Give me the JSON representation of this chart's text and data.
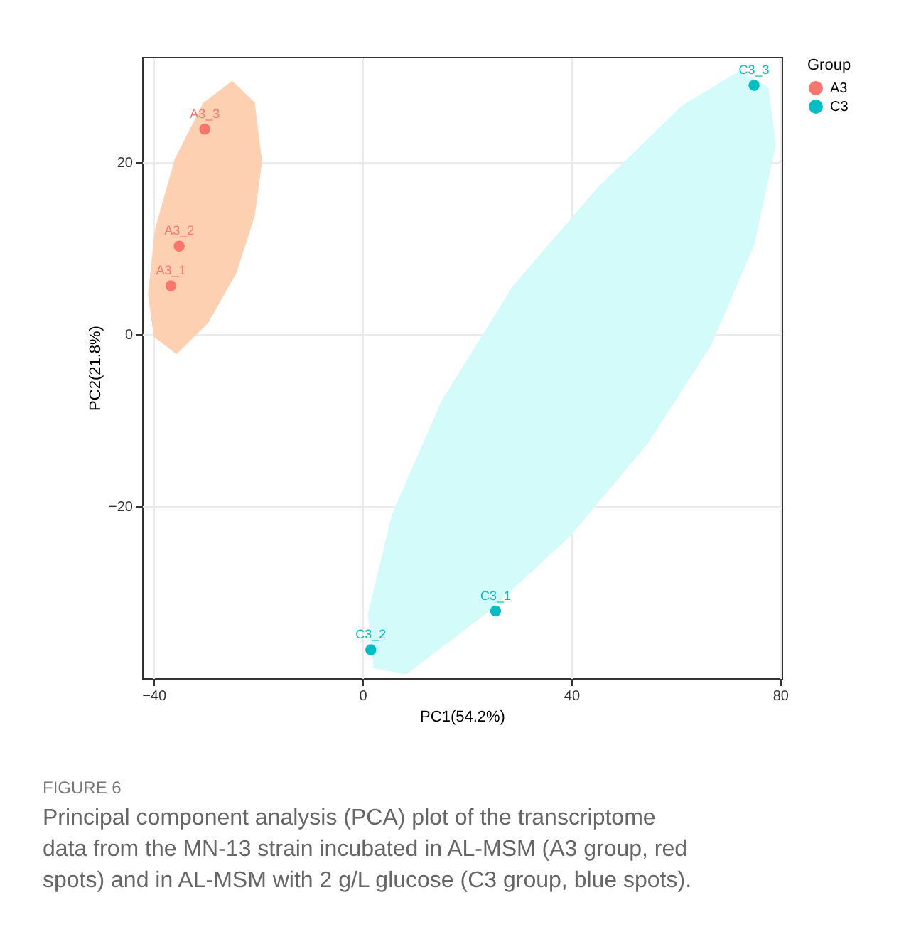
{
  "chart_data": {
    "type": "scatter",
    "title": "FIGURE 6",
    "subtitle": "Principal component analysis (PCA) plot of the transcriptome data from the MN-13 strain incubated in AL-MSM (A3 group, red spots) and in AL-MSM with 2 g/L glucose (C3 group, blue spots).",
    "xlabel": "PC1(54.2%)",
    "ylabel": "PC2(21.8%)",
    "legend_title": "Group",
    "legend": "right",
    "grid": true,
    "marker": "circle",
    "xlim": [
      -42.2,
      80.3
    ],
    "ylim": [
      -40,
      32.2
    ],
    "xticks": [
      -40,
      0,
      40,
      80
    ],
    "yticks": [
      -20,
      0,
      20
    ],
    "series": [
      {
        "type": "area",
        "marker": "none",
        "color": "#fdd0b2",
        "x": [
          -25.0,
          -20.7,
          -19.3,
          -20.7,
          -24.2,
          -29.6,
          -35.6,
          -39.9,
          -41.0,
          -39.7,
          -35.9,
          -30.4
        ],
        "values": [
          29.4,
          26.9,
          20.0,
          13.7,
          7.1,
          1.3,
          -2.3,
          -0.3,
          4.6,
          12.1,
          20.3,
          26.9
        ]
      },
      {
        "type": "area",
        "marker": "none",
        "color": "#d2fbf9",
        "x": [
          72.3,
          77.7,
          79.1,
          75.0,
          66.8,
          54.6,
          39.7,
          23.4,
          8.4,
          2.2,
          1.1,
          5.7,
          15.2,
          28.8,
          45.1,
          61.4
        ],
        "values": [
          30.6,
          28.6,
          22.0,
          10.4,
          -1.2,
          -12.7,
          -23.5,
          -32.6,
          -39.5,
          -38.8,
          -32.6,
          -21.0,
          -7.8,
          5.5,
          17.0,
          26.6
        ]
      },
      {
        "name": "A3",
        "color": "#f8766d",
        "x": [
          -36.7,
          -35.1,
          -30.2
        ],
        "values": [
          5.6,
          10.2,
          23.8
        ]
      },
      {
        "name": "C3",
        "color": "#00bfc4",
        "x": [
          25.5,
          1.6,
          75.0
        ],
        "values": [
          -32.2,
          -36.7,
          28.9
        ]
      }
    ],
    "annotations": [
      {
        "text": "A3_1",
        "x": -36.7,
        "y": 5.6
      },
      {
        "text": "A3_2",
        "x": -35.1,
        "y": 10.2
      },
      {
        "text": "A3_3",
        "x": -30.2,
        "y": 23.8
      },
      {
        "text": "C3_1",
        "x": 25.5,
        "y": -32.2
      },
      {
        "text": "C3_2",
        "x": 1.6,
        "y": -36.7
      },
      {
        "text": "C3_3",
        "x": 75.0,
        "y": 28.9
      }
    ]
  }
}
